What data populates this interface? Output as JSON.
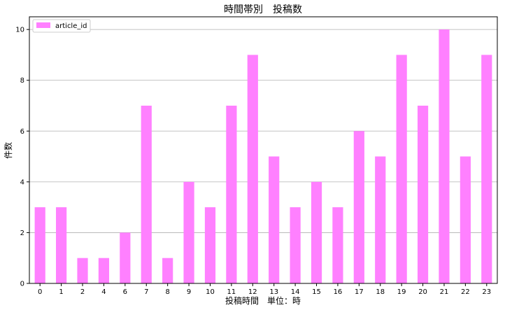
{
  "chart_data": {
    "type": "bar",
    "title": "時間帯別　投稿数",
    "xlabel": "投稿時間　単位：時",
    "ylabel": "件数",
    "categories": [
      "0",
      "1",
      "2",
      "4",
      "6",
      "7",
      "8",
      "9",
      "10",
      "11",
      "12",
      "13",
      "14",
      "15",
      "16",
      "17",
      "18",
      "19",
      "20",
      "21",
      "22",
      "23"
    ],
    "series": [
      {
        "name": "article_id",
        "color": "#ff80ff",
        "values": [
          3,
          3,
          1,
          1,
          2,
          7,
          1,
          4,
          3,
          7,
          9,
          5,
          3,
          4,
          3,
          6,
          5,
          9,
          7,
          10,
          5,
          9
        ]
      }
    ],
    "ylim": [
      0,
      10.5
    ],
    "yticks": [
      "0",
      "2",
      "4",
      "6",
      "8",
      "10"
    ],
    "grid": "horizontal",
    "legend": "top-left"
  }
}
